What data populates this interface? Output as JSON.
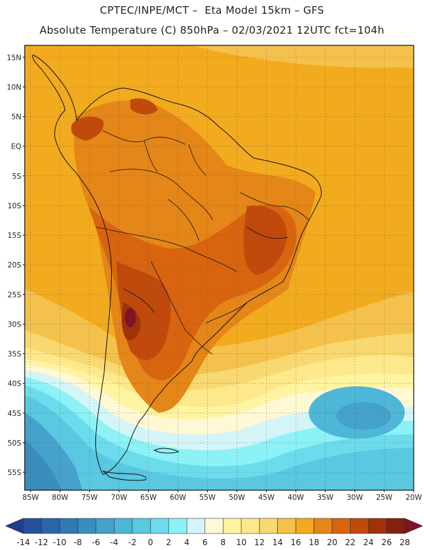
{
  "header": {
    "line1": "CPTEC/INPE/MCT –  Eta Model 15km – GFS",
    "line2": "Absolute Temperature (C) 850hPa – 02/03/2021 12UTC fct=104h"
  },
  "map": {
    "lon_range": [
      -86,
      -20
    ],
    "lat_range": [
      -58,
      17
    ],
    "lat_ticks": [
      {
        "value": 15,
        "label": "15N"
      },
      {
        "value": 10,
        "label": "10N"
      },
      {
        "value": 5,
        "label": "5N"
      },
      {
        "value": 0,
        "label": "EQ"
      },
      {
        "value": -5,
        "label": "5S"
      },
      {
        "value": -10,
        "label": "10S"
      },
      {
        "value": -15,
        "label": "15S"
      },
      {
        "value": -20,
        "label": "20S"
      },
      {
        "value": -25,
        "label": "25S"
      },
      {
        "value": -30,
        "label": "30S"
      },
      {
        "value": -35,
        "label": "35S"
      },
      {
        "value": -40,
        "label": "40S"
      },
      {
        "value": -45,
        "label": "45S"
      },
      {
        "value": -50,
        "label": "50S"
      },
      {
        "value": -55,
        "label": "55S"
      }
    ],
    "lon_ticks": [
      {
        "value": -85,
        "label": "85W"
      },
      {
        "value": -80,
        "label": "80W"
      },
      {
        "value": -75,
        "label": "75W"
      },
      {
        "value": -70,
        "label": "70W"
      },
      {
        "value": -65,
        "label": "65W"
      },
      {
        "value": -60,
        "label": "60W"
      },
      {
        "value": -55,
        "label": "55W"
      },
      {
        "value": -50,
        "label": "50W"
      },
      {
        "value": -45,
        "label": "45W"
      },
      {
        "value": -40,
        "label": "40W"
      },
      {
        "value": -35,
        "label": "35W"
      },
      {
        "value": -30,
        "label": "30W"
      },
      {
        "value": -25,
        "label": "25W"
      },
      {
        "value": -20,
        "label": "20W"
      }
    ],
    "gridlines": "dotted"
  },
  "colorbar": {
    "labels": [
      "-14",
      "-12",
      "-10",
      "-8",
      "-6",
      "-4",
      "-2",
      "0",
      "2",
      "4",
      "6",
      "8",
      "10",
      "12",
      "14",
      "16",
      "18",
      "20",
      "22",
      "24",
      "26",
      "28"
    ],
    "colors": [
      "#1e3d8f",
      "#24519c",
      "#2a66a8",
      "#3079b3",
      "#3a8dbf",
      "#44a2cb",
      "#4eb6d6",
      "#5ac8e0",
      "#6cdcec",
      "#8cf2f6",
      "#d4f5f8",
      "#fff8d4",
      "#fff4a0",
      "#fde88c",
      "#f8d870",
      "#f4c24c",
      "#f2ab1e",
      "#e48618",
      "#d86410",
      "#c04a0c",
      "#a0320a",
      "#842010",
      "#7e1424"
    ]
  }
}
